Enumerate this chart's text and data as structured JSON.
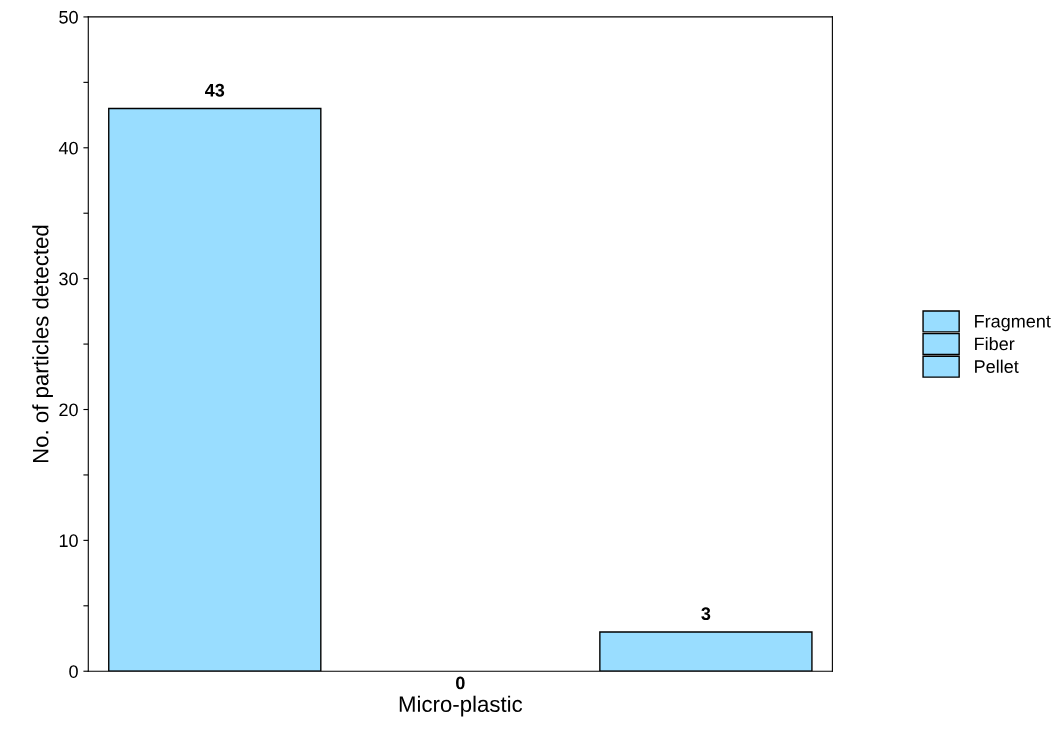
{
  "chart_data": {
    "type": "bar",
    "xlabel": "Micro-plastic",
    "ylabel": "No. of particles detected",
    "categories": [
      "0"
    ],
    "series": [
      {
        "name": "Fragment",
        "color": "#99ddff",
        "values": [
          43
        ],
        "value_labels": [
          "43"
        ]
      },
      {
        "name": "Fiber",
        "color": "#99ddff",
        "values": [
          0
        ],
        "value_labels": [
          null
        ]
      },
      {
        "name": "Pellet",
        "color": "#99ddff",
        "values": [
          3
        ],
        "value_labels": [
          "3"
        ]
      }
    ],
    "ylim": [
      0,
      50
    ],
    "yticks": [
      0,
      {
        "value": 5,
        "label": null
      },
      10,
      {
        "value": 15,
        "label": null
      },
      20,
      {
        "value": 25,
        "label": null
      },
      30,
      {
        "value": 35,
        "label": null
      },
      40,
      {
        "value": 45,
        "label": null
      },
      50
    ],
    "grid": false,
    "legend": "right"
  }
}
